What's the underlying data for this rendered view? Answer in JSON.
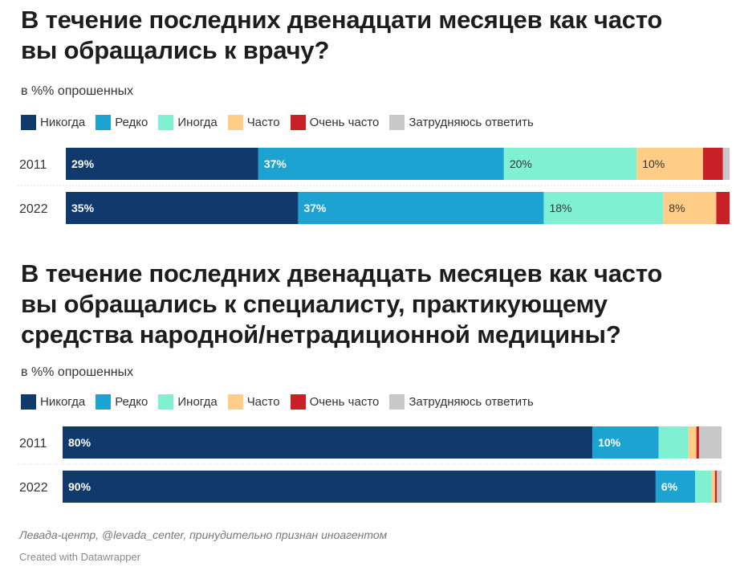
{
  "legend": [
    {
      "label": "Никогда",
      "color": "#0f3a6b"
    },
    {
      "label": "Редко",
      "color": "#1ca3d2"
    },
    {
      "label": "Иногда",
      "color": "#7ff0d1"
    },
    {
      "label": "Часто",
      "color": "#ffcd85"
    },
    {
      "label": "Очень часто",
      "color": "#c82026"
    },
    {
      "label": "Затрудняюсь ответить",
      "color": "#c8c8c8"
    }
  ],
  "chart_data": [
    {
      "type": "stacked-bar-horizontal",
      "title_lines": [
        "В течение последних двенадцати месяцев как часто",
        "вы обращались к врачу?"
      ],
      "subtitle": "в %% опрошенных",
      "units": "percent",
      "categories": [
        "2011",
        "2022"
      ],
      "series": [
        {
          "name": "Никогда",
          "values": [
            29,
            35
          ],
          "labels": [
            "29%",
            "35%"
          ]
        },
        {
          "name": "Редко",
          "values": [
            37,
            37
          ],
          "labels": [
            "37%",
            "37%"
          ]
        },
        {
          "name": "Иногда",
          "values": [
            20,
            18
          ],
          "labels": [
            "20%",
            "18%"
          ]
        },
        {
          "name": "Часто",
          "values": [
            10,
            8
          ],
          "labels": [
            "10%",
            "8%"
          ]
        },
        {
          "name": "Очень часто",
          "values": [
            3,
            2
          ],
          "labels": [
            "",
            ""
          ]
        },
        {
          "name": "Затрудняюсь ответить",
          "values": [
            1,
            0
          ],
          "labels": [
            "",
            ""
          ]
        }
      ]
    },
    {
      "type": "stacked-bar-horizontal",
      "title_lines": [
        "В течение последних двенадцать месяцев как часто",
        "вы обращались к специалисту, практикующему",
        "средства народной/нетрадиционной медицины?"
      ],
      "subtitle": "в %% опрошенных",
      "units": "percent",
      "categories": [
        "2011",
        "2022"
      ],
      "series": [
        {
          "name": "Никогда",
          "values": [
            80,
            90
          ],
          "labels": [
            "80%",
            "90%"
          ]
        },
        {
          "name": "Редко",
          "values": [
            10,
            6
          ],
          "labels": [
            "10%",
            "6%"
          ]
        },
        {
          "name": "Иногда",
          "values": [
            4.5,
            2.5
          ],
          "labels": [
            "",
            ""
          ]
        },
        {
          "name": "Часто",
          "values": [
            1.2,
            0.5
          ],
          "labels": [
            "",
            ""
          ]
        },
        {
          "name": "Очень часто",
          "values": [
            0.4,
            0.3
          ],
          "labels": [
            "",
            ""
          ]
        },
        {
          "name": "Затрудняюсь ответить",
          "values": [
            3.4,
            0.7
          ],
          "labels": [
            "",
            ""
          ]
        }
      ]
    }
  ],
  "footer": {
    "source": "Левада-центр, @levada_center, принудительно признан иноагентом",
    "credit": "Created with Datawrapper"
  }
}
